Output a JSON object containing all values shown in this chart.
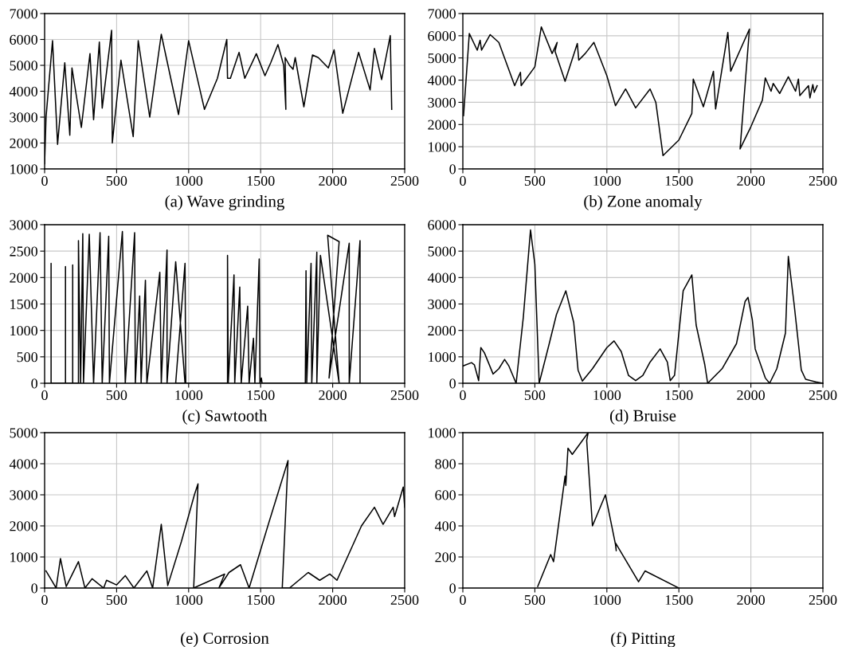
{
  "chart_data": [
    {
      "type": "line",
      "xlabel": "(a) Wave grinding",
      "xlim": [
        0,
        2500
      ],
      "ylim": [
        1000,
        7000
      ],
      "xticks": [
        0,
        500,
        1000,
        1500,
        2000,
        2500
      ],
      "yticks": [
        1000,
        2000,
        3000,
        4000,
        5000,
        6000,
        7000
      ],
      "grid": true,
      "series": [
        {
          "color": "#000000",
          "x": [
            0,
            10,
            55,
            90,
            140,
            175,
            190,
            255,
            315,
            340,
            380,
            400,
            465,
            470,
            530,
            615,
            650,
            730,
            810,
            930,
            1000,
            1110,
            1200,
            1265,
            1270,
            1290,
            1350,
            1390,
            1470,
            1530,
            1570,
            1620,
            1660,
            1675,
            1670,
            1700,
            1725,
            1740,
            1800,
            1860,
            1900,
            1970,
            2010,
            2070,
            2180,
            2260,
            2290,
            2340,
            2400,
            2410
          ],
          "values": [
            1200,
            3000,
            5950,
            1950,
            5100,
            2300,
            4900,
            2600,
            5450,
            2900,
            5900,
            3350,
            6350,
            2000,
            5200,
            2250,
            5950,
            3000,
            6200,
            3100,
            5950,
            3300,
            4500,
            6000,
            4500,
            4500,
            5500,
            4500,
            5450,
            4600,
            5100,
            5800,
            5000,
            3300,
            5300,
            5000,
            4850,
            5300,
            3400,
            5400,
            5300,
            4900,
            5600,
            3150,
            5500,
            4050,
            5650,
            4450,
            6150,
            3300
          ]
        }
      ]
    },
    {
      "type": "line",
      "xlabel": "(b) Zone anomaly",
      "xlim": [
        0,
        2500
      ],
      "ylim": [
        0,
        7000
      ],
      "xticks": [
        0,
        500,
        1000,
        1500,
        2000,
        2500
      ],
      "yticks": [
        0,
        1000,
        2000,
        3000,
        4000,
        5000,
        6000,
        7000
      ],
      "grid": true,
      "series": [
        {
          "color": "#000000",
          "x": [
            5,
            45,
            100,
            120,
            130,
            190,
            250,
            360,
            400,
            405,
            500,
            545,
            620,
            655,
            640,
            710,
            795,
            805,
            850,
            910,
            1000,
            1060,
            1130,
            1200,
            1300,
            1340,
            1390,
            1500,
            1590,
            1600,
            1670,
            1740,
            1755,
            1840,
            1860,
            1990,
            1925,
            2000,
            2080,
            2100,
            2140,
            2155,
            2200,
            2260,
            2310,
            2330,
            2340,
            2400,
            2410,
            2430,
            2440,
            2460
          ],
          "values": [
            2400,
            6100,
            5350,
            5800,
            5350,
            6050,
            5700,
            3750,
            4350,
            3750,
            4600,
            6400,
            5200,
            5700,
            5300,
            3950,
            5650,
            4900,
            5200,
            5700,
            4200,
            2850,
            3600,
            2750,
            3600,
            3000,
            600,
            1300,
            2500,
            4050,
            2800,
            4400,
            2700,
            6150,
            4400,
            6300,
            900,
            1900,
            3100,
            4100,
            3500,
            3850,
            3400,
            4150,
            3500,
            4050,
            3300,
            3750,
            3200,
            3800,
            3450,
            3750
          ]
        }
      ]
    },
    {
      "type": "line",
      "xlabel": "(c) Sawtooth",
      "xlim": [
        0,
        2500
      ],
      "ylim": [
        0,
        3000
      ],
      "xticks": [
        0,
        500,
        1000,
        1500,
        2000,
        2500
      ],
      "yticks": [
        0,
        500,
        1000,
        1500,
        2000,
        2500,
        3000
      ],
      "grid": true,
      "series": [
        {
          "color": "#000000",
          "x": [
            45,
            45,
            45,
            145,
            145,
            145,
            195,
            195,
            195,
            235,
            235,
            250,
            265,
            270,
            310,
            340,
            385,
            400,
            445,
            450,
            540,
            560,
            625,
            630,
            660,
            670,
            700,
            710,
            800,
            810,
            850,
            850,
            910,
            975,
            910,
            975,
            980,
            1270,
            1270,
            1275,
            1315,
            1320,
            1355,
            1365,
            1410,
            1420,
            1450,
            1460,
            1490,
            1495,
            1505,
            1510,
            1810,
            1815,
            1820,
            1850,
            1855,
            1890,
            1890,
            1915,
            2045,
            1965,
            2045,
            1975,
            2115,
            2115,
            2190,
            2190
          ],
          "values": [
            0,
            2270,
            0,
            0,
            2210,
            0,
            0,
            2240,
            0,
            0,
            2700,
            0,
            2830,
            0,
            2820,
            0,
            2850,
            0,
            2780,
            0,
            2870,
            0,
            2850,
            0,
            1650,
            0,
            1950,
            0,
            2100,
            0,
            2520,
            0,
            2300,
            0,
            0,
            2270,
            0,
            0,
            2420,
            0,
            2050,
            0,
            1820,
            0,
            1460,
            0,
            850,
            0,
            2350,
            0,
            100,
            0,
            0,
            2130,
            0,
            2270,
            0,
            2480,
            0,
            2420,
            0,
            2800,
            2680,
            100,
            2650,
            0,
            2700,
            0
          ]
        }
      ]
    },
    {
      "type": "line",
      "xlabel": "(d) Bruise",
      "xlim": [
        0,
        2500
      ],
      "ylim": [
        0,
        6000
      ],
      "xticks": [
        0,
        500,
        1000,
        1500,
        2000,
        2500
      ],
      "yticks": [
        0,
        1000,
        2000,
        3000,
        4000,
        5000,
        6000
      ],
      "grid": true,
      "series": [
        {
          "color": "#000000",
          "x": [
            0,
            60,
            80,
            110,
            125,
            150,
            210,
            250,
            290,
            320,
            370,
            420,
            470,
            500,
            530,
            600,
            650,
            715,
            770,
            800,
            830,
            900,
            1000,
            1050,
            1100,
            1150,
            1200,
            1250,
            1300,
            1370,
            1420,
            1440,
            1470,
            1530,
            1590,
            1620,
            1680,
            1700,
            1800,
            1900,
            1960,
            1980,
            2010,
            2030,
            2100,
            2130,
            2180,
            2240,
            2260,
            2300,
            2350,
            2380,
            2450,
            2500
          ],
          "values": [
            650,
            780,
            700,
            100,
            1350,
            1150,
            350,
            550,
            900,
            650,
            0,
            2500,
            5800,
            4500,
            0,
            1500,
            2600,
            3500,
            2300,
            500,
            80,
            550,
            1350,
            1600,
            1200,
            300,
            100,
            300,
            800,
            1300,
            800,
            100,
            300,
            3500,
            4100,
            2200,
            700,
            0,
            550,
            1500,
            3100,
            3250,
            2400,
            1300,
            200,
            0,
            550,
            1900,
            4800,
            3000,
            500,
            150,
            50,
            0
          ]
        }
      ]
    },
    {
      "type": "line",
      "xlabel": "(e) Corrosion",
      "xlim": [
        0,
        2500
      ],
      "ylim": [
        0,
        5000
      ],
      "xticks": [
        0,
        500,
        1000,
        1500,
        2000,
        2500
      ],
      "yticks": [
        0,
        1000,
        2000,
        3000,
        4000,
        5000
      ],
      "grid": true,
      "series": [
        {
          "color": "#000000",
          "x": [
            10,
            80,
            110,
            150,
            235,
            280,
            330,
            410,
            430,
            500,
            560,
            620,
            710,
            750,
            810,
            855,
            950,
            1040,
            1065,
            1035,
            1250,
            1210,
            1280,
            1360,
            1420,
            1550,
            1690,
            1650,
            1700,
            1830,
            1910,
            1980,
            2030,
            2200,
            2290,
            2350,
            2420,
            2430,
            2490,
            2500
          ],
          "values": [
            550,
            0,
            950,
            50,
            850,
            0,
            300,
            0,
            250,
            100,
            400,
            0,
            550,
            0,
            2050,
            80,
            1500,
            3000,
            3350,
            0,
            450,
            0,
            500,
            750,
            0,
            2000,
            4100,
            0,
            0,
            500,
            250,
            450,
            250,
            2000,
            2600,
            2050,
            2600,
            2300,
            3250,
            2600
          ]
        }
      ]
    },
    {
      "type": "line",
      "xlabel": "(f) Pitting",
      "xlim": [
        0,
        2500
      ],
      "ylim": [
        0,
        1000
      ],
      "xticks": [
        0,
        500,
        1000,
        1500,
        2000,
        2500
      ],
      "yticks": [
        0,
        200,
        400,
        600,
        800,
        1000
      ],
      "grid": true,
      "series": [
        {
          "color": "#000000",
          "x": [
            520,
            610,
            630,
            710,
            715,
            730,
            760,
            870,
            860,
            900,
            990,
            1060,
            1065,
            1060,
            1220,
            1265,
            1500
          ],
          "values": [
            10,
            215,
            170,
            720,
            660,
            900,
            860,
            1000,
            950,
            400,
            600,
            280,
            240,
            290,
            40,
            110,
            0
          ]
        }
      ]
    }
  ]
}
